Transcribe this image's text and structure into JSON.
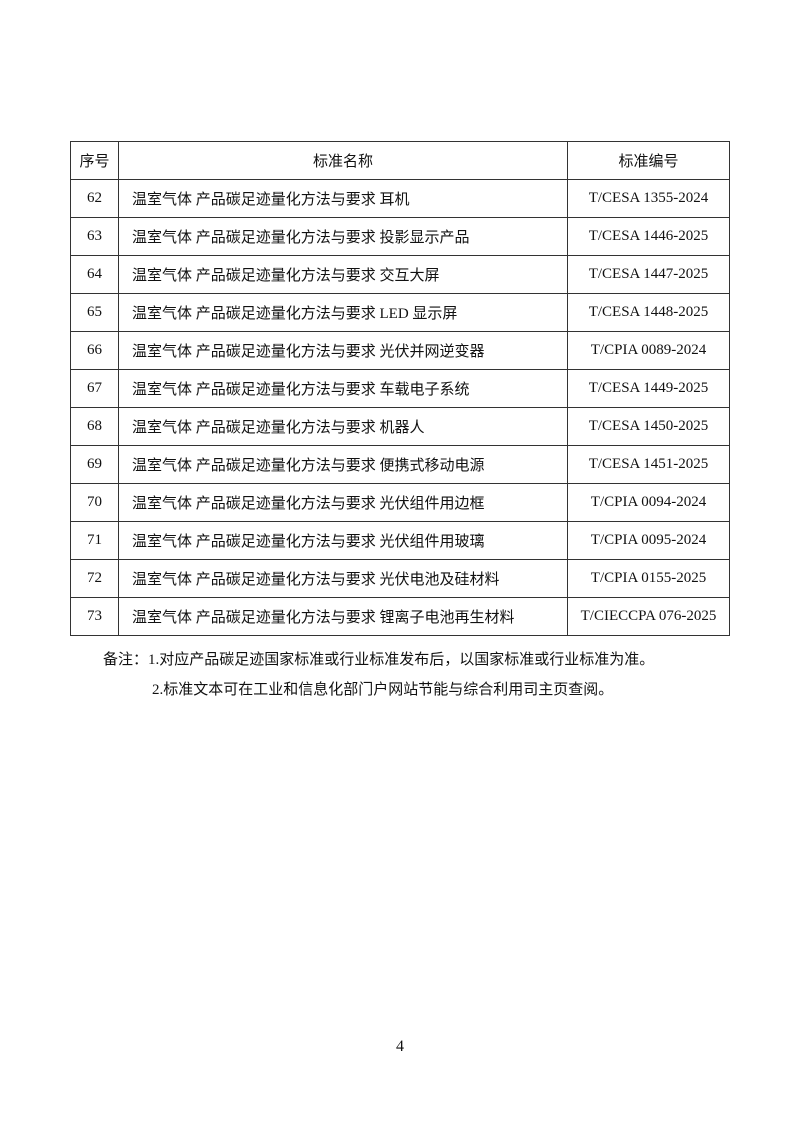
{
  "table": {
    "headers": [
      "序号",
      "标准名称",
      "标准编号"
    ],
    "rows": [
      [
        "62",
        "温室气体 产品碳足迹量化方法与要求 耳机",
        "T/CESA 1355-2024"
      ],
      [
        "63",
        "温室气体 产品碳足迹量化方法与要求 投影显示产品",
        "T/CESA 1446-2025"
      ],
      [
        "64",
        "温室气体 产品碳足迹量化方法与要求 交互大屏",
        "T/CESA 1447-2025"
      ],
      [
        "65",
        "温室气体 产品碳足迹量化方法与要求 LED 显示屏",
        "T/CESA 1448-2025"
      ],
      [
        "66",
        "温室气体 产品碳足迹量化方法与要求 光伏并网逆变器",
        "T/CPIA 0089-2024"
      ],
      [
        "67",
        "温室气体 产品碳足迹量化方法与要求 车载电子系统",
        "T/CESA 1449-2025"
      ],
      [
        "68",
        "温室气体 产品碳足迹量化方法与要求 机器人",
        "T/CESA 1450-2025"
      ],
      [
        "69",
        "温室气体 产品碳足迹量化方法与要求 便携式移动电源",
        "T/CESA 1451-2025"
      ],
      [
        "70",
        "温室气体 产品碳足迹量化方法与要求 光伏组件用边框",
        "T/CPIA 0094-2024"
      ],
      [
        "71",
        "温室气体 产品碳足迹量化方法与要求 光伏组件用玻璃",
        "T/CPIA 0095-2024"
      ],
      [
        "72",
        "温室气体 产品碳足迹量化方法与要求 光伏电池及硅材料",
        "T/CPIA 0155-2025"
      ],
      [
        "73",
        "温室气体 产品碳足迹量化方法与要求 锂离子电池再生材料",
        "T/CIECCPA 076-2025"
      ]
    ]
  },
  "notes": [
    "备注：1.对应产品碳足迹国家标准或行业标准发布后，以国家标准或行业标准为准。",
    "2.标准文本可在工业和信息化部门户网站节能与综合利用司主页查阅。"
  ],
  "page_number": "4"
}
